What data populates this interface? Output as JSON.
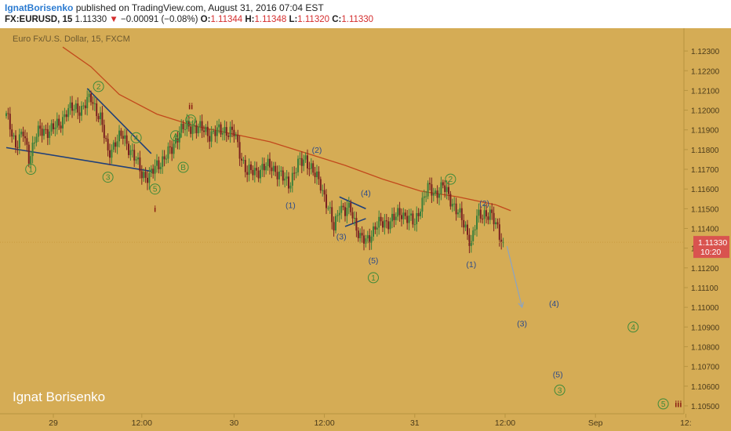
{
  "header": {
    "author": "IgnatBorisenko",
    "published": "published on TradingView.com, August 31, 2016 07:04 EST",
    "symbol": "FX:EURUSD, 15",
    "last": "1.11330",
    "change": "−0.00091 (−0.08%)",
    "o_label": "O:",
    "o": "1.11344",
    "h_label": "H:",
    "h": "1.11348",
    "l_label": "L:",
    "l": "1.11320",
    "c_label": "C:",
    "c": "1.11330"
  },
  "colors": {
    "background": "#d5ac55",
    "up": "#3a7f3a",
    "down": "#7a2020",
    "ma": "#c2491c",
    "trendline": "#1f3f7a",
    "wave_green": "#3e8a3a",
    "wave_blue": "#2c4a8a",
    "wave_red": "#8a1e12",
    "price_tag": "#d9534f"
  },
  "chart_data": {
    "type": "candlestick",
    "subtitle": "Euro Fx/U.S. Dollar, 15, FXCM",
    "watermark": "Ignat Borisenko",
    "ylim": [
      1.1046,
      1.1236
    ],
    "grid": false,
    "y_ticks": [
      "1.12300",
      "1.12200",
      "1.12100",
      "1.12000",
      "1.11900",
      "1.11800",
      "1.11700",
      "1.11600",
      "1.11500",
      "1.11400",
      "1.11300",
      "1.11200",
      "1.11100",
      "1.11000",
      "1.10900",
      "1.10800",
      "1.10700",
      "1.10600",
      "1.10500"
    ],
    "x_ticks": [
      {
        "label": "29",
        "t": 25
      },
      {
        "label": "12:00",
        "t": 72
      },
      {
        "label": "30",
        "t": 121
      },
      {
        "label": "12:00",
        "t": 169
      },
      {
        "label": "31",
        "t": 217
      },
      {
        "label": "12:00",
        "t": 265
      },
      {
        "label": "Sep",
        "t": 313
      },
      {
        "label": "12:",
        "t": 361
      }
    ],
    "last_price": {
      "value": "1.11330",
      "timer": "10:20"
    },
    "anchors": [
      {
        "t": 0,
        "p": 1.1197
      },
      {
        "t": 5,
        "p": 1.1183
      },
      {
        "t": 9,
        "p": 1.1188
      },
      {
        "t": 12,
        "p": 1.1176
      },
      {
        "t": 16,
        "p": 1.1188
      },
      {
        "t": 22,
        "p": 1.119
      },
      {
        "t": 28,
        "p": 1.1192
      },
      {
        "t": 32,
        "p": 1.12
      },
      {
        "t": 40,
        "p": 1.1201
      },
      {
        "t": 45,
        "p": 1.1206
      },
      {
        "t": 50,
        "p": 1.1196
      },
      {
        "t": 54,
        "p": 1.1178
      },
      {
        "t": 58,
        "p": 1.1184
      },
      {
        "t": 62,
        "p": 1.1187
      },
      {
        "t": 68,
        "p": 1.1176
      },
      {
        "t": 72,
        "p": 1.1168
      },
      {
        "t": 76,
        "p": 1.1166
      },
      {
        "t": 80,
        "p": 1.1172
      },
      {
        "t": 84,
        "p": 1.1176
      },
      {
        "t": 88,
        "p": 1.118
      },
      {
        "t": 92,
        "p": 1.119
      },
      {
        "t": 100,
        "p": 1.1192
      },
      {
        "t": 108,
        "p": 1.1188
      },
      {
        "t": 116,
        "p": 1.119
      },
      {
        "t": 121,
        "p": 1.1188
      },
      {
        "t": 125,
        "p": 1.1176
      },
      {
        "t": 128,
        "p": 1.1168
      },
      {
        "t": 135,
        "p": 1.117
      },
      {
        "t": 141,
        "p": 1.1172
      },
      {
        "t": 145,
        "p": 1.1167
      },
      {
        "t": 150,
        "p": 1.1163
      },
      {
        "t": 155,
        "p": 1.1172
      },
      {
        "t": 159,
        "p": 1.1176
      },
      {
        "t": 163,
        "p": 1.1168
      },
      {
        "t": 167,
        "p": 1.1163
      },
      {
        "t": 171,
        "p": 1.115
      },
      {
        "t": 174,
        "p": 1.114
      },
      {
        "t": 177,
        "p": 1.1152
      },
      {
        "t": 180,
        "p": 1.1148
      },
      {
        "t": 183,
        "p": 1.115
      },
      {
        "t": 188,
        "p": 1.1135
      },
      {
        "t": 191,
        "p": 1.1133
      },
      {
        "t": 196,
        "p": 1.1141
      },
      {
        "t": 201,
        "p": 1.1143
      },
      {
        "t": 206,
        "p": 1.1145
      },
      {
        "t": 210,
        "p": 1.1148
      },
      {
        "t": 213,
        "p": 1.1146
      },
      {
        "t": 217,
        "p": 1.1142
      },
      {
        "t": 220,
        "p": 1.1152
      },
      {
        "t": 224,
        "p": 1.116
      },
      {
        "t": 228,
        "p": 1.1158
      },
      {
        "t": 232,
        "p": 1.1161
      },
      {
        "t": 236,
        "p": 1.1155
      },
      {
        "t": 240,
        "p": 1.1148
      },
      {
        "t": 244,
        "p": 1.114
      },
      {
        "t": 247,
        "p": 1.1133
      },
      {
        "t": 250,
        "p": 1.1145
      },
      {
        "t": 254,
        "p": 1.1148
      },
      {
        "t": 257,
        "p": 1.1147
      },
      {
        "t": 261,
        "p": 1.114
      },
      {
        "t": 264,
        "p": 1.1133
      }
    ],
    "moving_average": [
      {
        "t": 30,
        "p": 1.1232
      },
      {
        "t": 45,
        "p": 1.1222
      },
      {
        "t": 60,
        "p": 1.1208
      },
      {
        "t": 80,
        "p": 1.1198
      },
      {
        "t": 100,
        "p": 1.1192
      },
      {
        "t": 120,
        "p": 1.1188
      },
      {
        "t": 140,
        "p": 1.1184
      },
      {
        "t": 160,
        "p": 1.1178
      },
      {
        "t": 180,
        "p": 1.1172
      },
      {
        "t": 200,
        "p": 1.1165
      },
      {
        "t": 220,
        "p": 1.1159
      },
      {
        "t": 240,
        "p": 1.1156
      },
      {
        "t": 260,
        "p": 1.1152
      },
      {
        "t": 268,
        "p": 1.1149
      }
    ],
    "trendlines": [
      {
        "t1": 0,
        "p1": 1.1181,
        "t2": 77,
        "p2": 1.1169
      },
      {
        "t1": 43,
        "p1": 1.1211,
        "t2": 77,
        "p2": 1.1178
      },
      {
        "t1": 177,
        "p1": 1.1156,
        "t2": 191,
        "p2": 1.115
      },
      {
        "t1": 180,
        "p1": 1.1141,
        "t2": 191,
        "p2": 1.1145
      }
    ],
    "projection": {
      "t1": 266,
      "p1": 1.1131,
      "t2": 274,
      "p2": 1.11
    },
    "wave_labels": [
      {
        "text": "1",
        "t": 13,
        "p": 1.117,
        "style": "green-circle"
      },
      {
        "text": "2",
        "t": 49,
        "p": 1.1212,
        "style": "green-circle"
      },
      {
        "text": "3",
        "t": 54,
        "p": 1.1166,
        "style": "green-circle"
      },
      {
        "text": "4",
        "t": 69,
        "p": 1.1186,
        "style": "green-circle"
      },
      {
        "text": "5",
        "t": 79,
        "p": 1.116,
        "style": "green-circle"
      },
      {
        "text": "i",
        "t": 79,
        "p": 1.115,
        "style": "red"
      },
      {
        "text": "A",
        "t": 90,
        "p": 1.1187,
        "style": "green-circle"
      },
      {
        "text": "B",
        "t": 94,
        "p": 1.1171,
        "style": "green-circle"
      },
      {
        "text": "ii",
        "t": 98,
        "p": 1.1202,
        "style": "red"
      },
      {
        "text": "C",
        "t": 98,
        "p": 1.1195,
        "style": "green-circle"
      },
      {
        "text": "(2)",
        "t": 165,
        "p": 1.118,
        "style": "blue"
      },
      {
        "text": "(1)",
        "t": 151,
        "p": 1.1152,
        "style": "blue"
      },
      {
        "text": "(4)",
        "t": 191,
        "p": 1.1158,
        "style": "blue"
      },
      {
        "text": "(3)",
        "t": 178,
        "p": 1.1136,
        "style": "blue"
      },
      {
        "text": "(5)",
        "t": 195,
        "p": 1.1124,
        "style": "blue"
      },
      {
        "text": "1",
        "t": 195,
        "p": 1.1115,
        "style": "green-circle"
      },
      {
        "text": "2",
        "t": 236,
        "p": 1.1165,
        "style": "green-circle"
      },
      {
        "text": "(2)",
        "t": 254,
        "p": 1.1153,
        "style": "blue"
      },
      {
        "text": "(1)",
        "t": 247,
        "p": 1.1122,
        "style": "blue"
      },
      {
        "text": "(4)",
        "t": 291,
        "p": 1.1102,
        "style": "blue"
      },
      {
        "text": "(3)",
        "t": 274,
        "p": 1.1092,
        "style": "blue"
      },
      {
        "text": "4",
        "t": 333,
        "p": 1.109,
        "style": "green-circle"
      },
      {
        "text": "(5)",
        "t": 293,
        "p": 1.1066,
        "style": "blue"
      },
      {
        "text": "3",
        "t": 294,
        "p": 1.1058,
        "style": "green-circle"
      },
      {
        "text": "5",
        "t": 349,
        "p": 1.1051,
        "style": "green-circle"
      },
      {
        "text": "iii",
        "t": 357,
        "p": 1.1051,
        "style": "red"
      }
    ]
  }
}
